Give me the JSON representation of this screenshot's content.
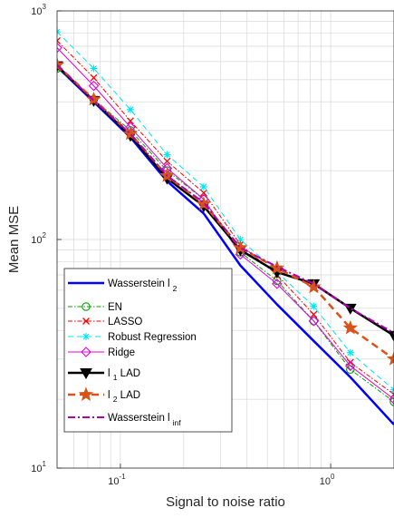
{
  "chart_data": {
    "type": "line",
    "xlabel": "Signal to noise ratio",
    "ylabel": "Mean MSE",
    "xscale": "log",
    "yscale": "log",
    "xlim": [
      0.05,
      2.0
    ],
    "ylim": [
      10,
      1000
    ],
    "grid": true,
    "legend_position": "bottom-left",
    "x": [
      0.05,
      0.0747,
      0.1116,
      0.1667,
      0.249,
      0.372,
      0.5557,
      0.8302,
      1.2402,
      2.0
    ],
    "xticks": [
      {
        "value": 0.1,
        "base": "10",
        "exp": "-1"
      },
      {
        "value": 1,
        "base": "10",
        "exp": "0"
      }
    ],
    "yticks": [
      {
        "value": 10,
        "base": "10",
        "exp": "1"
      },
      {
        "value": 100,
        "base": "10",
        "exp": "2"
      },
      {
        "value": 1000,
        "base": "10",
        "exp": "3"
      }
    ],
    "series": [
      {
        "name": "Wasserstein l",
        "name_sub": "2",
        "color": "#0000ff",
        "dash": "",
        "width": 2.5,
        "marker": "none",
        "values": [
          570,
          400,
          280,
          180,
          130,
          77,
          52,
          36,
          25,
          15.5
        ]
      },
      {
        "name": "EN",
        "color": "#00a000",
        "dash": "5,2,1.5,2",
        "width": 1,
        "marker": "circle",
        "values": [
          560,
          410,
          300,
          200,
          150,
          88,
          66,
          44,
          27,
          19.5
        ]
      },
      {
        "name": "LASSO",
        "color": "#ff0000",
        "dash": "5,2,1.5,2",
        "width": 1,
        "marker": "x",
        "values": [
          740,
          510,
          330,
          220,
          160,
          95,
          70,
          47,
          29,
          21
        ]
      },
      {
        "name": "Robust Regression",
        "color": "#00e5ee",
        "dash": "6,4",
        "width": 1,
        "marker": "asterisk",
        "values": [
          810,
          560,
          370,
          235,
          170,
          100,
          72,
          51,
          32,
          22
        ]
      },
      {
        "name": "Ridge",
        "color": "#e000e0",
        "dash": "",
        "width": 1,
        "marker": "diamond",
        "values": [
          690,
          470,
          310,
          205,
          150,
          86,
          64,
          44,
          28,
          20
        ]
      },
      {
        "name": "LAD",
        "name_pre": "l",
        "name_pre_sub": "1",
        "color": "#000000",
        "dash": "",
        "width": 2.5,
        "marker": "triangle-down",
        "values": [
          575,
          405,
          285,
          185,
          140,
          90,
          72,
          64,
          50,
          38
        ]
      },
      {
        "name": "LAD",
        "name_pre": "l",
        "name_pre_sub": "2",
        "color": "#d95319",
        "dash": "8,5",
        "width": 2.5,
        "marker": "star",
        "values": [
          580,
          410,
          290,
          190,
          143,
          92,
          75,
          62,
          41,
          30
        ]
      },
      {
        "name": "Wasserstein l",
        "name_sub": "inf",
        "color": "#b000b0",
        "dash": "8,3,2,3",
        "width": 2,
        "marker": "none",
        "values": [
          580,
          405,
          290,
          190,
          145,
          92,
          76,
          64,
          50,
          39
        ]
      }
    ]
  }
}
